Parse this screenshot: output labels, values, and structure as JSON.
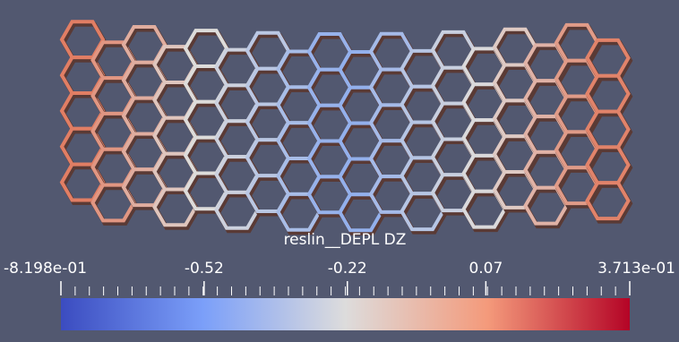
{
  "colorbar": {
    "title": "reslin__DEPL DZ",
    "range": [
      -0.8198,
      0.3713
    ],
    "ticks": [
      {
        "value": -0.8198,
        "label": "-8.198e-01"
      },
      -0.52,
      -0.22,
      0.07,
      {
        "value": 0.3713,
        "label": "3.713e-01"
      }
    ]
  }
}
